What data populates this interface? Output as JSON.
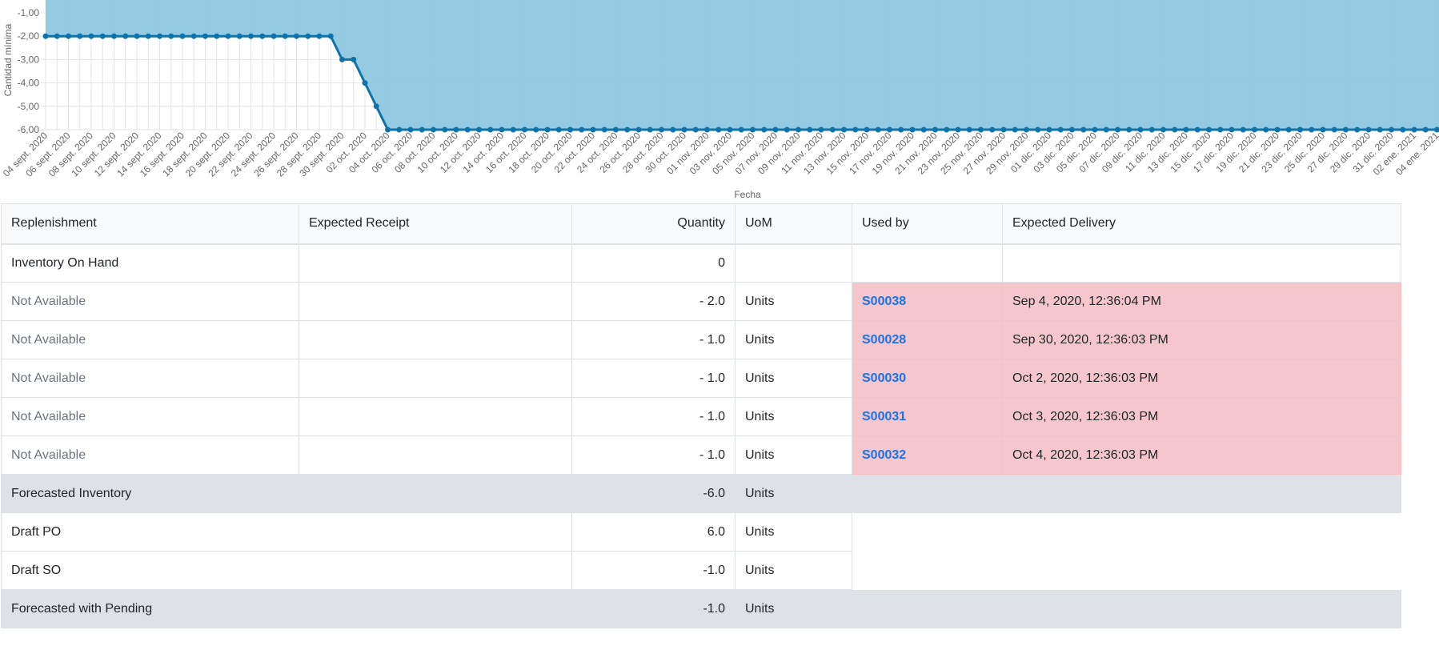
{
  "chart_data": {
    "type": "area",
    "xlabel": "Fecha",
    "ylabel": "Cantidad mínima",
    "ylim": [
      -6,
      -1
    ],
    "yticks": [
      "-1,00",
      "-2,00",
      "-3,00",
      "-4,00",
      "-5,00",
      "-6,00"
    ],
    "x_tick_labels": [
      "04 sept. 2020",
      "06 sept. 2020",
      "08 sept. 2020",
      "10 sept. 2020",
      "12 sept. 2020",
      "14 sept. 2020",
      "16 sept. 2020",
      "18 sept. 2020",
      "20 sept. 2020",
      "22 sept. 2020",
      "24 sept. 2020",
      "26 sept. 2020",
      "28 sept. 2020",
      "30 sept. 2020",
      "02 oct. 2020",
      "04 oct. 2020",
      "06 oct. 2020",
      "08 oct. 2020",
      "10 oct. 2020",
      "12 oct. 2020",
      "14 oct. 2020",
      "16 oct. 2020",
      "18 oct. 2020",
      "20 oct. 2020",
      "22 oct. 2020",
      "24 oct. 2020",
      "26 oct. 2020",
      "28 oct. 2020",
      "30 oct. 2020",
      "01 nov. 2020",
      "03 nov. 2020",
      "05 nov. 2020",
      "07 nov. 2020",
      "09 nov. 2020",
      "11 nov. 2020",
      "13 nov. 2020",
      "15 nov. 2020",
      "17 nov. 2020",
      "19 nov. 2020",
      "21 nov. 2020",
      "23 nov. 2020",
      "25 nov. 2020",
      "27 nov. 2020",
      "29 nov. 2020",
      "01 dic. 2020",
      "03 dic. 2020",
      "05 dic. 2020",
      "07 dic. 2020",
      "09 dic. 2020",
      "11 dic. 2020",
      "13 dic. 2020",
      "15 dic. 2020",
      "17 dic. 2020",
      "19 dic. 2020",
      "21 dic. 2020",
      "23 dic. 2020",
      "25 dic. 2020",
      "27 dic. 2020",
      "29 dic. 2020",
      "31 dic. 2020",
      "02 ene. 2021",
      "04 ene. 2021"
    ],
    "series": [
      {
        "changes": [
          {
            "from": "04 sept. 2020",
            "value": -2
          },
          {
            "from": "30 sept. 2020",
            "value": -3
          },
          {
            "from": "02 oct. 2020",
            "value": -4
          },
          {
            "from": "03 oct. 2020",
            "value": -5
          },
          {
            "from": "04 oct. 2020",
            "value": -6
          }
        ],
        "until": "04 ene. 2021"
      }
    ],
    "grid": true,
    "colors": {
      "fill": "#8ec7e0",
      "line": "#0f73a8",
      "point": "#0f73a8"
    }
  },
  "table": {
    "headers": {
      "replenishment": "Replenishment",
      "expected_receipt": "Expected Receipt",
      "quantity": "Quantity",
      "uom": "UoM",
      "used_by": "Used by",
      "expected_delivery": "Expected Delivery"
    },
    "on_hand": {
      "label": "Inventory On Hand",
      "quantity": "0"
    },
    "moves": [
      {
        "replenishment": "Not Available",
        "quantity": "- 2.0",
        "uom": "Units",
        "used_by": "S00038",
        "expected_delivery": "Sep 4, 2020, 12:36:04 PM"
      },
      {
        "replenishment": "Not Available",
        "quantity": "- 1.0",
        "uom": "Units",
        "used_by": "S00028",
        "expected_delivery": "Sep 30, 2020, 12:36:03 PM"
      },
      {
        "replenishment": "Not Available",
        "quantity": "- 1.0",
        "uom": "Units",
        "used_by": "S00030",
        "expected_delivery": "Oct 2, 2020, 12:36:03 PM"
      },
      {
        "replenishment": "Not Available",
        "quantity": "- 1.0",
        "uom": "Units",
        "used_by": "S00031",
        "expected_delivery": "Oct 3, 2020, 12:36:03 PM"
      },
      {
        "replenishment": "Not Available",
        "quantity": "- 1.0",
        "uom": "Units",
        "used_by": "S00032",
        "expected_delivery": "Oct 4, 2020, 12:36:03 PM"
      }
    ],
    "footer": [
      {
        "label": "Forecasted Inventory",
        "quantity": "-6.0",
        "uom": "Units",
        "style": "summary"
      },
      {
        "label": "Draft PO",
        "quantity": "6.0",
        "uom": "Units",
        "style": "plain"
      },
      {
        "label": "Draft SO",
        "quantity": "-1.0",
        "uom": "Units",
        "style": "plain"
      },
      {
        "label": "Forecasted with Pending",
        "quantity": "-1.0",
        "uom": "Units",
        "style": "summary"
      }
    ],
    "colors": {
      "late_row": "#f5c6cb",
      "summary_row": "#dee2e6",
      "link": "#1a73e8"
    }
  }
}
